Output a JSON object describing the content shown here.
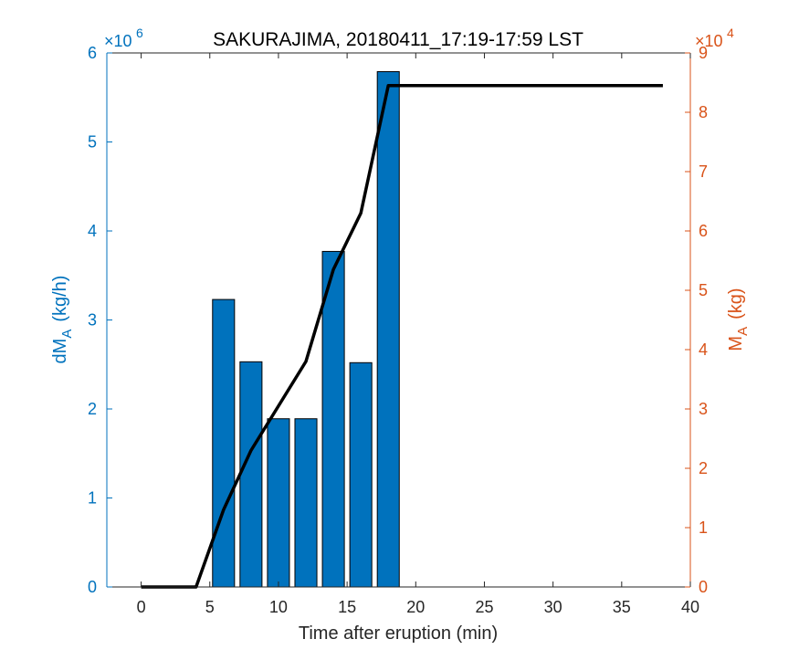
{
  "chart_data": {
    "type": "bar",
    "title": "SAKURAJIMA, 20180411_17:19-17:59 LST",
    "xlabel": "Time after eruption (min)",
    "xlim": [
      -2.5,
      40
    ],
    "xticks": [
      0,
      5,
      10,
      15,
      20,
      25,
      30,
      35,
      40
    ],
    "left_axis": {
      "label_main": "dM",
      "label_sub": "A",
      "label_unit": "(kg/h)",
      "exponent_text": "×10",
      "exponent_power": "6",
      "ylim": [
        0,
        6
      ],
      "yticks": [
        0,
        1,
        2,
        3,
        4,
        5,
        6
      ],
      "color": "#0072BD"
    },
    "right_axis": {
      "label_main": "M",
      "label_sub": "A",
      "label_unit": "(kg)",
      "exponent_text": "×10",
      "exponent_power": "4",
      "ylim": [
        0,
        9
      ],
      "yticks": [
        0,
        1,
        2,
        3,
        4,
        5,
        6,
        7,
        8,
        9
      ],
      "color": "#D95319"
    },
    "series": [
      {
        "type": "bar",
        "axis": "left",
        "color": "#0072BD",
        "x": [
          6,
          8,
          10,
          12,
          14,
          16,
          18
        ],
        "values": [
          3.23,
          2.53,
          1.89,
          1.89,
          3.77,
          2.52,
          5.79
        ]
      },
      {
        "type": "line",
        "axis": "right",
        "color": "#000000",
        "x": [
          0,
          4,
          6,
          8,
          10,
          12,
          14,
          16,
          18,
          38
        ],
        "values": [
          0,
          0,
          1.3,
          2.3,
          3.05,
          3.8,
          5.35,
          6.3,
          8.45,
          8.45
        ]
      }
    ],
    "grid": false
  }
}
